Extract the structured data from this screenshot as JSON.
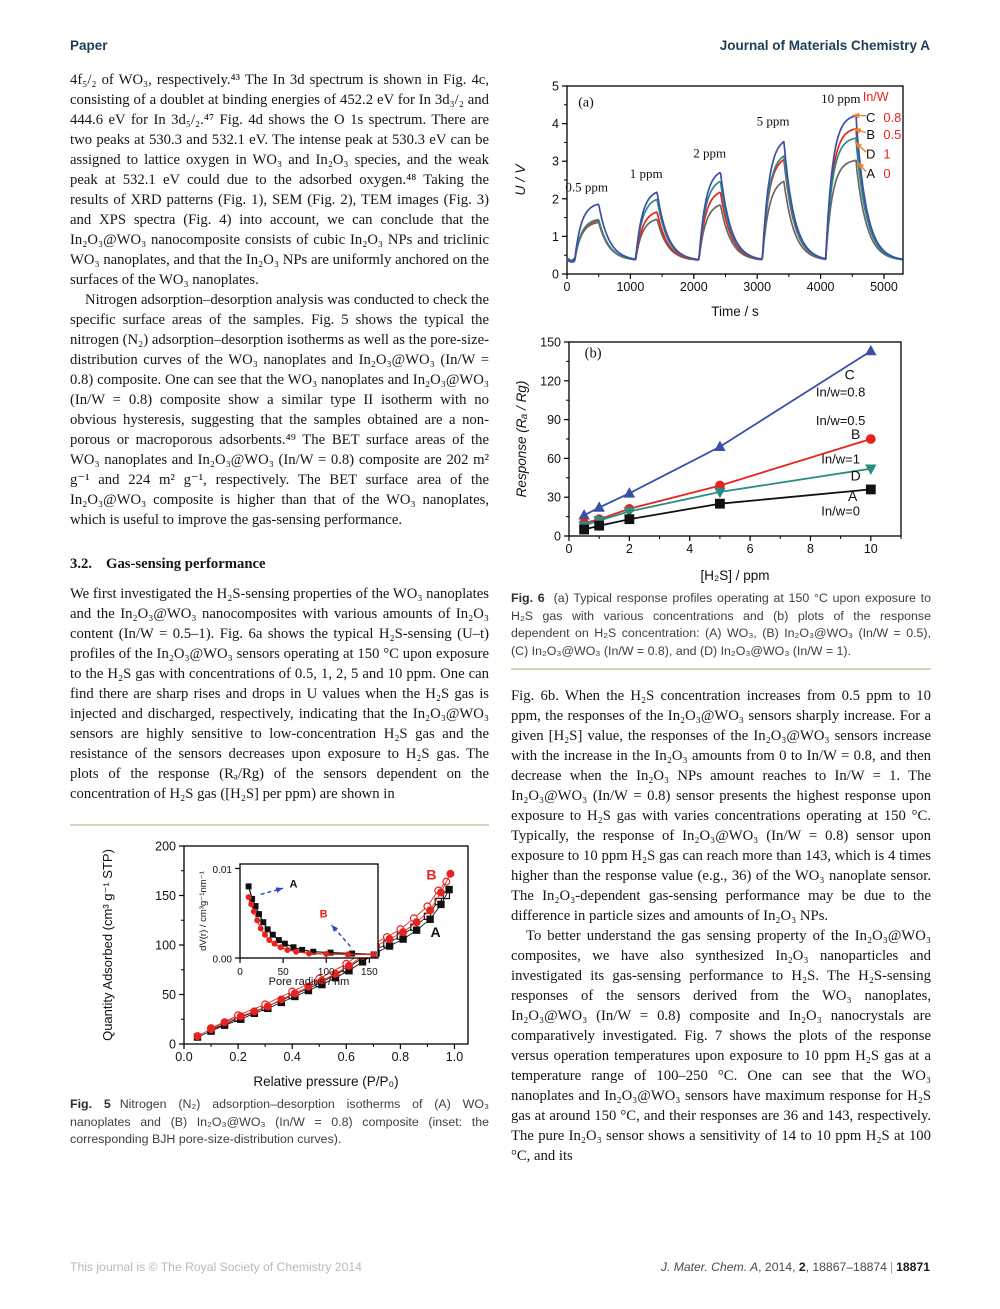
{
  "header": {
    "left": "Paper",
    "right": "Journal of Materials Chemistry A"
  },
  "left_column": {
    "para1": "4f₅/₂ of WO₃, respectively.⁴³ The In 3d spectrum is shown in Fig. 4c, consisting of a doublet at binding energies of 452.2 eV for In 3d₃/₂ and 444.6 eV for In 3d₅/₂.⁴⁷ Fig. 4d shows the O 1s spectrum. There are two peaks at 530.3 and 532.1 eV. The intense peak at 530.3 eV can be assigned to lattice oxygen in WO₃ and In₂O₃ species, and the weak peak at 532.1 eV could due to the adsorbed oxygen.⁴⁸ Taking the results of XRD patterns (Fig. 1), SEM (Fig. 2), TEM images (Fig. 3) and XPS spectra (Fig. 4) into account, we can conclude that the In₂O₃@WO₃ nanocomposite consists of cubic In₂O₃ NPs and triclinic WO₃ nanoplates, and that the In₂O₃ NPs are uniformly anchored on the surfaces of the WO₃ nanoplates.",
    "para2": "Nitrogen adsorption–desorption analysis was conducted to check the specific surface areas of the samples. Fig. 5 shows the typical the nitrogen (N₂) adsorption–desorption isotherms as well as the pore-size-distribution curves of the WO₃ nanoplates and In₂O₃@WO₃ (In/W = 0.8) composite. One can see that the WO₃ nanoplates and In₂O₃@WO₃ (In/W = 0.8) composite show a similar type II isotherm with no obvious hysteresis, suggesting that the samples obtained are a non-porous or macroporous adsorbents.⁴⁹ The BET surface areas of the WO₃ nanoplates and In₂O₃@WO₃ (In/W = 0.8) composite are 202 m² g⁻¹ and 224 m² g⁻¹, respectively. The BET surface area of the In₂O₃@WO₃ composite is higher than that of the WO₃ nanoplates, which is useful to improve the gas-sensing performance.",
    "section": {
      "number": "3.2.",
      "title": "Gas-sensing performance"
    },
    "para3": "We first investigated the H₂S-sensing properties of the WO₃ nanoplates and the In₂O₃@WO₃ nanocomposites with various amounts of In₂O₃ content (In/W = 0.5–1). Fig. 6a shows the typical H₂S-sensing (U–t) profiles of the In₂O₃@WO₃ sensors operating at 150 °C upon exposure to the H₂S gas with concentrations of 0.5, 1, 2, 5 and 10 ppm. One can find there are sharp rises and drops in U values when the H₂S gas is injected and discharged, respectively, indicating that the In₂O₃@WO₃ sensors are highly sensitive to low-concentration H₂S gas and the resistance of the sensors decreases upon exposure to H₂S gas. The plots of the response (Rₐ/Rg) of the sensors dependent on the concentration of H₂S gas ([H₂S] per ppm) are shown in",
    "fig5_caption": {
      "label": "Fig. 5",
      "text": "Nitrogen (N₂) adsorption–desorption isotherms of (A) WO₃ nanoplates and (B) In₂O₃@WO₃ (In/W = 0.8) composite (inset: the corresponding BJH pore-size-distribution curves)."
    }
  },
  "right_column": {
    "fig6_caption": {
      "label": "Fig. 6",
      "text": "(a) Typical response profiles operating at 150 °C upon exposure to H₂S gas with various concentrations and (b) plots of the response dependent on H₂S concentration: (A) WO₃, (B) In₂O₃@WO₃ (In/W = 0.5), (C) In₂O₃@WO₃ (In/W = 0.8), and (D) In₂O₃@WO₃ (In/W = 1).",
      "rule_color": "#d9d5ba"
    },
    "para1": "Fig. 6b. When the H₂S concentration increases from 0.5 ppm to 10 ppm, the responses of the In₂O₃@WO₃ sensors sharply increase. For a given [H₂S] value, the responses of the In₂O₃@WO₃ sensors increase with the increase in the In₂O₃ amounts from 0 to In/W = 0.8, and then decrease when the In₂O₃ NPs amount reaches to In/W = 1. The In₂O₃@WO₃ (In/W = 0.8) sensor presents the highest response upon exposure to H₂S gas with varies concentrations operating at 150 °C. Typically, the response of In₂O₃@WO₃ (In/W = 0.8) sensor upon exposure to 10 ppm H₂S gas can reach more than 143, which is 4 times higher than the response value (e.g., 36) of the WO₃ nanoplate sensor. The In₂O₃-dependent gas-sensing performance may be due to the difference in particle sizes and amounts of In₂O₃ NPs.",
    "para2": "To better understand the gas sensing property of the In₂O₃@WO₃ composites, we have also synthesized In₂O₃ nanoparticles and investigated its gas-sensing performance to H₂S. The H₂S-sensing responses of the sensors derived from the WO₃ nanoplates, In₂O₃@WO₃ (In/W = 0.8) composite and In₂O₃ nanocrystals are comparatively investigated. Fig. 7 shows the plots of the response versus operation temperatures upon exposure to 10 ppm H₂S gas at a temperature range of 100–250 °C. One can see that the WO₃ nanoplates and In₂O₃@WO₃ sensors have maximum response for H₂S gas at around 150 °C, and their responses are 36 and 143, respectively. The pure In₂O₃ sensor shows a sensitivity of 14 to 10 ppm H₂S at 100 °C, and its"
  },
  "footer": {
    "left": "This journal is © The Royal Society of Chemistry 2014",
    "journal": "J. Mater. Chem. A",
    "meta1": ", 2014, ",
    "volume": "2",
    "pages": ", 18867–18874",
    "separator": "|",
    "page_number": "18871"
  },
  "colors": {
    "header_navy": "#1d3d57",
    "rule_tan": "#d9d5ba",
    "series_A": "#686868",
    "series_B": "#e8231f",
    "series_C": "#3a50a8",
    "series_D": "#2c8c80",
    "legend_arrow_orange": "#f0812c",
    "inset_arrow_blue": "#2b4bc8"
  },
  "chart_data": [
    {
      "id": "fig6a",
      "type": "line",
      "panel_label": "(a)",
      "xlabel": "Time / s",
      "ylabel": "U / V",
      "xlim": [
        0,
        5300
      ],
      "ylim": [
        0,
        5
      ],
      "xticks": [
        0,
        1000,
        2000,
        3000,
        4000,
        5000
      ],
      "yticks": [
        0,
        1,
        2,
        3,
        4,
        5
      ],
      "baseline_U": 0.35,
      "pulse_labels": [
        "0.5 ppm",
        "1 ppm",
        "2 ppm",
        "5 ppm",
        "10 ppm"
      ],
      "pulses": [
        {
          "t0": 120,
          "t1": 500
        },
        {
          "t0": 1080,
          "t1": 1420
        },
        {
          "t0": 2080,
          "t1": 2420
        },
        {
          "t0": 3080,
          "t1": 3420
        },
        {
          "t0": 4080,
          "t1": 4560
        }
      ],
      "series": [
        {
          "name": "A",
          "in_w": "0",
          "color": "#686868",
          "peak_U": [
            1.4,
            1.5,
            1.9,
            2.55,
            3.05
          ]
        },
        {
          "name": "B",
          "in_w": "0.5",
          "color": "#e8231f",
          "peak_U": [
            1.45,
            1.7,
            2.25,
            3.15,
            3.9
          ]
        },
        {
          "name": "D",
          "in_w": "1",
          "color": "#2c8c80",
          "peak_U": [
            1.48,
            2.05,
            2.55,
            3.25,
            3.65
          ]
        },
        {
          "name": "C",
          "in_w": "0.8",
          "color": "#3a50a8",
          "peak_U": [
            1.9,
            2.25,
            2.8,
            3.65,
            4.25
          ]
        }
      ],
      "legend_title": "In/W",
      "legend": [
        {
          "letter": "C",
          "value": "0.8",
          "y": 4.15,
          "head": [
            4500,
            4.22
          ]
        },
        {
          "letter": "B",
          "value": "0.5",
          "y": 3.7,
          "head": [
            4520,
            3.86
          ]
        },
        {
          "letter": "D",
          "value": "1",
          "y": 3.18,
          "head": [
            4540,
            3.52
          ]
        },
        {
          "letter": "A",
          "value": "0",
          "y": 2.66,
          "head": [
            4580,
            2.98
          ]
        }
      ]
    },
    {
      "id": "fig6b",
      "type": "line",
      "panel_label": "(b)",
      "xlabel": "[H₂S] / ppm",
      "ylabel": "Response (Rₐ / Rg)",
      "xlim": [
        0,
        11
      ],
      "ylim": [
        0,
        150
      ],
      "xticks": [
        0,
        2,
        4,
        6,
        8,
        10
      ],
      "yticks": [
        0,
        30,
        60,
        90,
        120,
        150
      ],
      "x": [
        0.5,
        1,
        2,
        5,
        10
      ],
      "series": [
        {
          "name": "C",
          "label": "In/w=0.8",
          "color": "#3a50a8",
          "marker": "triangle-up",
          "values": [
            16,
            22,
            33,
            69,
            143
          ]
        },
        {
          "name": "B",
          "label": "In/w=0.5",
          "color": "#e8231f",
          "marker": "circle",
          "values": [
            10,
            13,
            21,
            39,
            75
          ]
        },
        {
          "name": "D",
          "label": "In/w=1",
          "color": "#2c8c80",
          "marker": "triangle-down",
          "values": [
            8,
            12,
            19,
            34,
            52
          ]
        },
        {
          "name": "A",
          "label": "In/w=0",
          "color": "#111111",
          "marker": "square",
          "values": [
            5,
            8,
            13,
            25,
            36
          ]
        }
      ],
      "annotations": [
        {
          "text": "(b)",
          "x": 0.8,
          "y": 138,
          "color": "#111111",
          "size": 14.5,
          "serif": true
        },
        {
          "text": "C",
          "x": 9.3,
          "y": 121,
          "color": "#111111",
          "size": 14
        },
        {
          "text": "In/w=0.8",
          "x": 9.0,
          "y": 108,
          "color": "#111111",
          "size": 13
        },
        {
          "text": "In/w=0.5",
          "x": 9.0,
          "y": 86,
          "color": "#111111",
          "size": 13
        },
        {
          "text": "B",
          "x": 9.5,
          "y": 75,
          "color": "#111111",
          "size": 14
        },
        {
          "text": "In/w=1",
          "x": 9.0,
          "y": 56,
          "color": "#111111",
          "size": 13
        },
        {
          "text": "D",
          "x": 9.5,
          "y": 43,
          "color": "#111111",
          "size": 14
        },
        {
          "text": "A",
          "x": 9.4,
          "y": 27,
          "color": "#111111",
          "size": 14
        },
        {
          "text": "In/w=0",
          "x": 9.0,
          "y": 16,
          "color": "#111111",
          "size": 13
        }
      ]
    },
    {
      "id": "fig5",
      "type": "scatter",
      "xlabel": "Relative pressure (P/P₀)",
      "ylabel": "Quantity Adsorbed (cm³ g⁻¹ STP)",
      "xlim": [
        0,
        1.05
      ],
      "ylim": [
        0,
        200
      ],
      "xticks": [
        0.0,
        0.2,
        0.4,
        0.6,
        0.8,
        1.0
      ],
      "yticks": [
        0,
        50,
        100,
        150,
        200
      ],
      "series": [
        {
          "name": "A desorption",
          "color": "#111111",
          "marker": "square",
          "filled": false,
          "points": [
            [
              0.1,
              14
            ],
            [
              0.2,
              26
            ],
            [
              0.3,
              37
            ],
            [
              0.4,
              49
            ],
            [
              0.5,
              61
            ],
            [
              0.6,
              76
            ],
            [
              0.7,
              94
            ],
            [
              0.75,
              101
            ],
            [
              0.8,
              109
            ],
            [
              0.85,
              118
            ],
            [
              0.9,
              129
            ],
            [
              0.94,
              144
            ],
            [
              0.97,
              150
            ]
          ]
        },
        {
          "name": "A adsorption",
          "color": "#111111",
          "marker": "square",
          "filled": true,
          "points": [
            [
              0.05,
              7
            ],
            [
              0.1,
              13
            ],
            [
              0.15,
              19
            ],
            [
              0.21,
              25
            ],
            [
              0.26,
              31
            ],
            [
              0.31,
              36
            ],
            [
              0.36,
              42
            ],
            [
              0.41,
              48
            ],
            [
              0.46,
              54
            ],
            [
              0.51,
              60
            ],
            [
              0.56,
              67
            ],
            [
              0.61,
              74
            ],
            [
              0.66,
              83
            ],
            [
              0.71,
              92
            ],
            [
              0.76,
              99
            ],
            [
              0.81,
              106
            ],
            [
              0.86,
              115
            ],
            [
              0.91,
              126
            ],
            [
              0.95,
              141
            ],
            [
              0.98,
              156
            ]
          ]
        },
        {
          "name": "B desorption",
          "color": "#e8231f",
          "marker": "circle",
          "filled": false,
          "points": [
            [
              0.1,
              16
            ],
            [
              0.2,
              29
            ],
            [
              0.3,
              40
            ],
            [
              0.4,
              53
            ],
            [
              0.5,
              66
            ],
            [
              0.6,
              81
            ],
            [
              0.7,
              101
            ],
            [
              0.75,
              108
            ],
            [
              0.8,
              116
            ],
            [
              0.85,
              127
            ],
            [
              0.9,
              139
            ],
            [
              0.94,
              155
            ],
            [
              0.97,
              164
            ]
          ]
        },
        {
          "name": "B adsorption",
          "color": "#e8231f",
          "marker": "circle",
          "filled": true,
          "points": [
            [
              0.05,
              8
            ],
            [
              0.1,
              15
            ],
            [
              0.15,
              22
            ],
            [
              0.21,
              28
            ],
            [
              0.26,
              33
            ],
            [
              0.31,
              38
            ],
            [
              0.36,
              45
            ],
            [
              0.41,
              51
            ],
            [
              0.46,
              58
            ],
            [
              0.51,
              64
            ],
            [
              0.56,
              71
            ],
            [
              0.61,
              79
            ],
            [
              0.66,
              89
            ],
            [
              0.71,
              99
            ],
            [
              0.76,
              106
            ],
            [
              0.81,
              113
            ],
            [
              0.86,
              123
            ],
            [
              0.91,
              135
            ],
            [
              0.95,
              153
            ],
            [
              0.985,
              172
            ]
          ]
        }
      ],
      "labels": [
        {
          "text": "B",
          "x": 0.915,
          "y": 166,
          "color": "#e8231f"
        },
        {
          "text": "A",
          "x": 0.93,
          "y": 108,
          "color": "#111111"
        }
      ]
    },
    {
      "id": "fig5-inset",
      "type": "line",
      "xlabel": "Pore radius / nm",
      "ylabel": "dV(r) / cm³g⁻¹nm⁻¹",
      "xlim": [
        0,
        160
      ],
      "ylim": [
        0,
        0.0105
      ],
      "xticks": [
        0,
        50,
        100,
        150
      ],
      "yticks": [
        0,
        0.01
      ],
      "series": [
        {
          "name": "A",
          "color": "#111111",
          "marker": "square",
          "points": [
            [
              10,
              0.008
            ],
            [
              14,
              0.0066
            ],
            [
              18,
              0.0058
            ],
            [
              22,
              0.0049
            ],
            [
              27,
              0.004
            ],
            [
              32,
              0.0032
            ],
            [
              38,
              0.0026
            ],
            [
              45,
              0.002
            ],
            [
              52,
              0.0016
            ],
            [
              62,
              0.0012
            ],
            [
              72,
              0.0009
            ],
            [
              85,
              0.0007
            ],
            [
              105,
              0.0006
            ],
            [
              130,
              0.0005
            ],
            [
              155,
              0.0004
            ]
          ]
        },
        {
          "name": "B",
          "color": "#e8231f",
          "marker": "circle",
          "points": [
            [
              10,
              0.0068
            ],
            [
              13,
              0.006
            ],
            [
              16,
              0.0052
            ],
            [
              20,
              0.0042
            ],
            [
              24,
              0.0033
            ],
            [
              29,
              0.0026
            ],
            [
              34,
              0.002
            ],
            [
              40,
              0.0016
            ],
            [
              47,
              0.0012
            ],
            [
              55,
              0.0009
            ],
            [
              65,
              0.0007
            ],
            [
              80,
              0.0005
            ],
            [
              100,
              0.00045
            ],
            [
              125,
              0.0004
            ],
            [
              155,
              0.0004
            ]
          ]
        }
      ],
      "labels": [
        {
          "text": "A",
          "x": 62,
          "y": 0.0079,
          "color": "#111111"
        },
        {
          "text": "B",
          "x": 97,
          "y": 0.0045,
          "color": "#e8231f"
        }
      ],
      "arrows": [
        {
          "x1": 24,
          "y1": 0.0071,
          "x2": 50,
          "y2": 0.0078
        },
        {
          "x1": 128,
          "y1": 0.0013,
          "x2": 106,
          "y2": 0.0037
        }
      ]
    }
  ]
}
